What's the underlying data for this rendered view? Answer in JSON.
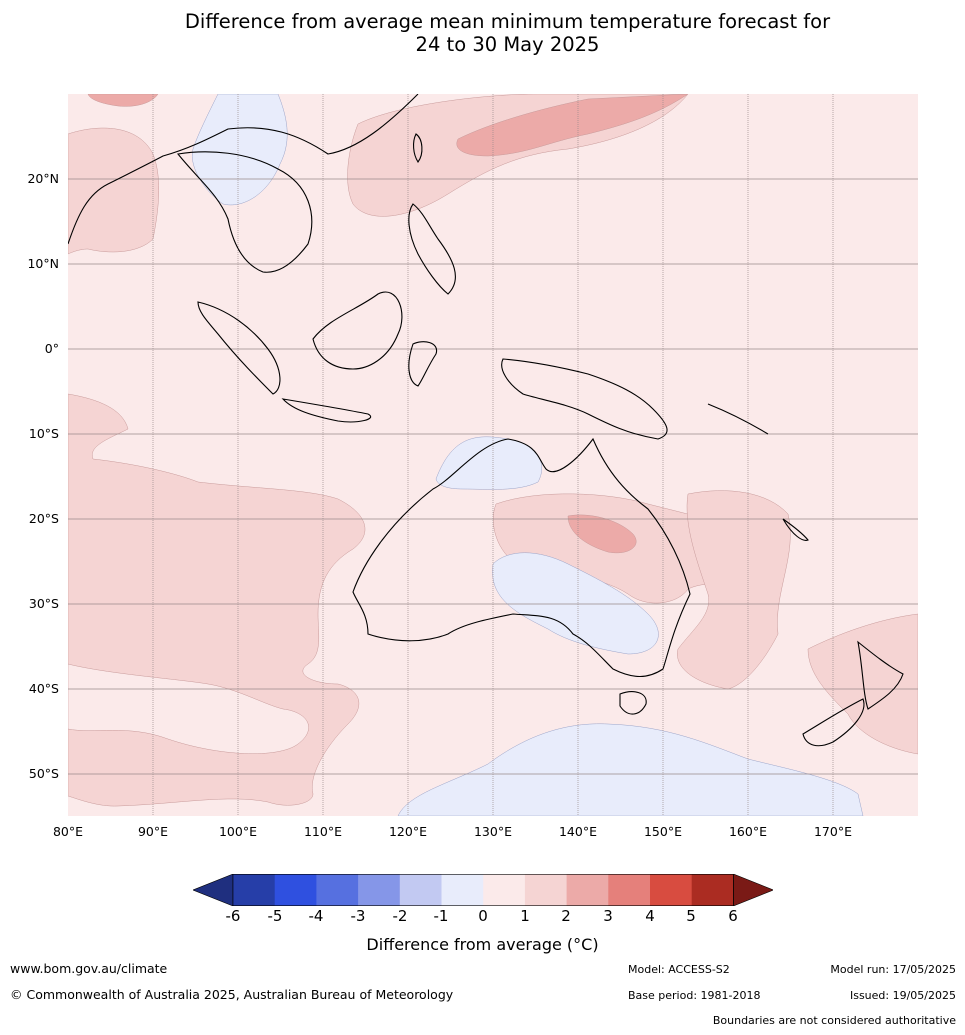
{
  "title_line1": "Difference from average mean minimum temperature forecast for",
  "title_line2": "24 to 30 May 2025",
  "lat_labels": [
    "20°N",
    "10°N",
    "0°",
    "10°S",
    "20°S",
    "30°S",
    "40°S",
    "50°S"
  ],
  "lon_labels": [
    "80°E",
    "90°E",
    "100°E",
    "110°E",
    "120°E",
    "130°E",
    "140°E",
    "150°E",
    "160°E",
    "170°E"
  ],
  "colorbar": {
    "ticks": [
      "-6",
      "-5",
      "-4",
      "-3",
      "-2",
      "-1",
      "0",
      "1",
      "2",
      "3",
      "4",
      "5",
      "6"
    ],
    "colors": [
      "#1f2f7f",
      "#263ea8",
      "#2f50e0",
      "#5670e0",
      "#8596e8",
      "#c2c9f2",
      "#e8ecfb",
      "#fbeaea",
      "#f5d4d3",
      "#ecaaa8",
      "#e5807b",
      "#d84c40",
      "#ab2c22",
      "#7a1a16"
    ],
    "label": "Difference from average (°C)"
  },
  "footer": {
    "website": "www.bom.gov.au/climate",
    "copyright": "© Commonwealth of Australia 2025, Australian Bureau of Meteorology",
    "model": "Model: ACCESS-S2",
    "model_run": "Model run: 17/05/2025",
    "base_period": "Base period: 1981-2018",
    "issued": "Issued: 19/05/2025",
    "disclaimer": "Boundaries are not considered authoritative"
  }
}
